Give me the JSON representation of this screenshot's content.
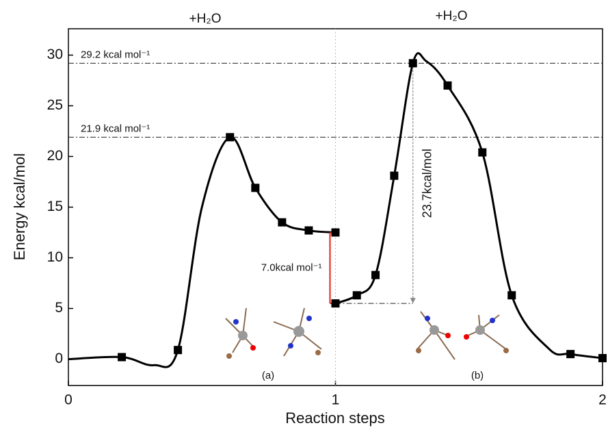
{
  "chart_data": {
    "type": "line",
    "x_label": "Reaction steps",
    "y_label": "Energy kcal/mol",
    "top_labels": [
      "+H₂O",
      "+H₂O"
    ],
    "xlim": [
      0,
      2
    ],
    "xticks": [
      0,
      1,
      2
    ],
    "ylim": [
      -2.6,
      32.6
    ],
    "yticks": [
      0,
      5,
      10,
      15,
      20,
      25,
      30
    ],
    "color": "#000000",
    "series": [
      {
        "x": [
          0,
          0.2,
          0.32,
          0.41,
          0.5,
          0.605,
          0.7,
          0.8,
          0.9,
          1.0,
          1.0,
          1.0,
          1.08,
          1.15,
          1.22,
          1.29,
          1.34,
          1.42,
          1.55,
          1.66,
          1.8,
          1.88,
          2.0
        ],
        "values": [
          0,
          0.2,
          -0.6,
          0.9,
          15,
          21.9,
          16.9,
          13.5,
          12.7,
          12.5,
          null,
          5.5,
          6.3,
          8.3,
          18.1,
          29.2,
          29.4,
          27.0,
          20.4,
          6.3,
          1.0,
          0.5,
          0.1
        ]
      },
      {
        "x": [
          0.2,
          0.41,
          0.605,
          0.7,
          0.8,
          0.9,
          1.0,
          1.0,
          1.08,
          1.15,
          1.22,
          1.29,
          1.42,
          1.55,
          1.66,
          1.88,
          2.0
        ],
        "values": [
          0.2,
          0.9,
          21.9,
          16.9,
          13.5,
          12.7,
          12.5,
          5.5,
          6.3,
          8.3,
          18.1,
          29.2,
          27.0,
          20.4,
          6.3,
          0.5,
          0.1
        ]
      }
    ],
    "reference_lines": [
      {
        "value": 29.2,
        "label": "29.2 kcal mol⁻¹"
      },
      {
        "value": 21.9,
        "label": "21.9 kcal mol⁻¹"
      }
    ],
    "differences": [
      {
        "x": 1.0,
        "from": 5.5,
        "to": 12.5,
        "label": "7.0kcal mol⁻¹",
        "color": "#e0201b"
      },
      {
        "x": 1.29,
        "from": 29.2,
        "to": 5.5,
        "label": "23.7kcal/mol",
        "color": "#888888"
      }
    ],
    "structure_labels": [
      "(a)",
      "(b)"
    ]
  }
}
